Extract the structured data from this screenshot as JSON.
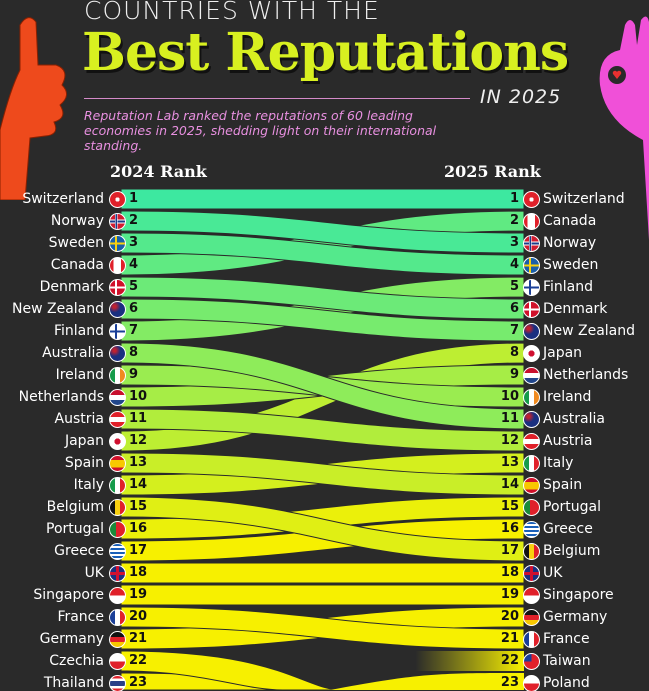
{
  "header": {
    "top_title": "COUNTRIES WITH THE",
    "main_title": "Best Reputations",
    "year_label": "IN 2025",
    "subtitle": "Reputation Lab ranked the reputations of 60 leading economies in 2025, shedding light on their international standing."
  },
  "colors": {
    "background": "#2a2a2a",
    "band_top": "#3de8a0",
    "band_bottom": "#f7f000",
    "title": "#d8f020",
    "subtitle": "#e890e0",
    "left_hand": "#ee4a1c",
    "right_hand": "#f050d8"
  },
  "chart_data": {
    "type": "bump",
    "left_header": "2024 Rank",
    "right_header": "2025 Rank",
    "left": [
      {
        "rank": 1,
        "country": "Switzerland",
        "rank_2025": 1
      },
      {
        "rank": 2,
        "country": "Norway",
        "rank_2025": 3
      },
      {
        "rank": 3,
        "country": "Sweden",
        "rank_2025": 4
      },
      {
        "rank": 4,
        "country": "Canada",
        "rank_2025": 2
      },
      {
        "rank": 5,
        "country": "Denmark",
        "rank_2025": 6
      },
      {
        "rank": 6,
        "country": "New Zealand",
        "rank_2025": 7
      },
      {
        "rank": 7,
        "country": "Finland",
        "rank_2025": 5
      },
      {
        "rank": 8,
        "country": "Australia",
        "rank_2025": 11
      },
      {
        "rank": 9,
        "country": "Ireland",
        "rank_2025": 10
      },
      {
        "rank": 10,
        "country": "Netherlands",
        "rank_2025": 9
      },
      {
        "rank": 11,
        "country": "Austria",
        "rank_2025": 12
      },
      {
        "rank": 12,
        "country": "Japan",
        "rank_2025": 8
      },
      {
        "rank": 13,
        "country": "Spain",
        "rank_2025": 14
      },
      {
        "rank": 14,
        "country": "Italy",
        "rank_2025": 13
      },
      {
        "rank": 15,
        "country": "Belgium",
        "rank_2025": 17
      },
      {
        "rank": 16,
        "country": "Portugal",
        "rank_2025": 15
      },
      {
        "rank": 17,
        "country": "Greece",
        "rank_2025": 16
      },
      {
        "rank": 18,
        "country": "UK",
        "rank_2025": 18
      },
      {
        "rank": 19,
        "country": "Singapore",
        "rank_2025": 19
      },
      {
        "rank": 20,
        "country": "France",
        "rank_2025": 21
      },
      {
        "rank": 21,
        "country": "Germany",
        "rank_2025": 20
      },
      {
        "rank": 22,
        "country": "Czechia",
        "rank_2025": null
      },
      {
        "rank": 23,
        "country": "Thailand",
        "rank_2025": null
      }
    ],
    "right": [
      {
        "rank": 1,
        "country": "Switzerland"
      },
      {
        "rank": 2,
        "country": "Canada"
      },
      {
        "rank": 3,
        "country": "Norway"
      },
      {
        "rank": 4,
        "country": "Sweden"
      },
      {
        "rank": 5,
        "country": "Finland"
      },
      {
        "rank": 6,
        "country": "Denmark"
      },
      {
        "rank": 7,
        "country": "New Zealand"
      },
      {
        "rank": 8,
        "country": "Japan"
      },
      {
        "rank": 9,
        "country": "Netherlands"
      },
      {
        "rank": 10,
        "country": "Ireland"
      },
      {
        "rank": 11,
        "country": "Australia"
      },
      {
        "rank": 12,
        "country": "Austria"
      },
      {
        "rank": 13,
        "country": "Italy"
      },
      {
        "rank": 14,
        "country": "Spain"
      },
      {
        "rank": 15,
        "country": "Portugal"
      },
      {
        "rank": 16,
        "country": "Greece"
      },
      {
        "rank": 17,
        "country": "Belgium"
      },
      {
        "rank": 18,
        "country": "UK"
      },
      {
        "rank": 19,
        "country": "Singapore"
      },
      {
        "rank": 20,
        "country": "Germany"
      },
      {
        "rank": 21,
        "country": "France"
      },
      {
        "rank": 22,
        "country": "Taiwan"
      },
      {
        "rank": 23,
        "country": "Poland"
      }
    ]
  }
}
